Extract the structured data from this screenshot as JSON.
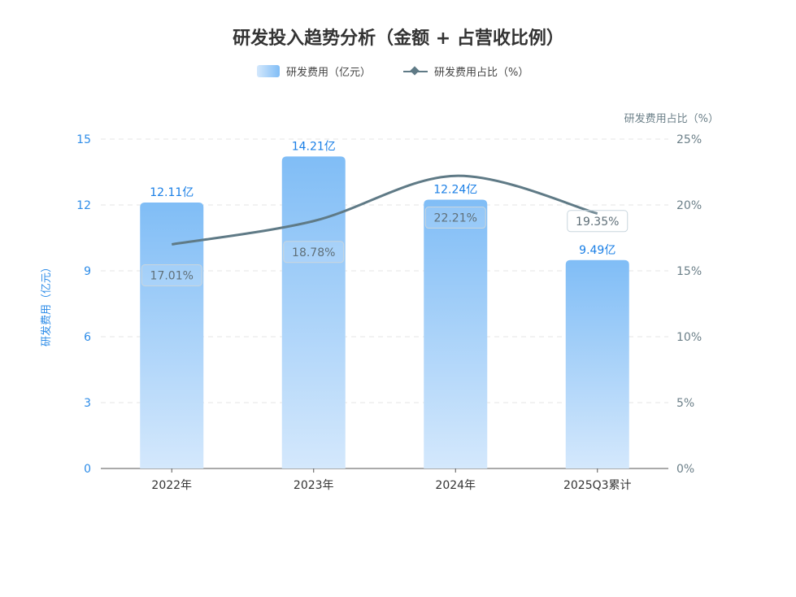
{
  "chart_data": {
    "type": "bar",
    "title": "研发投入趋势分析（金额 + 占营收比例）",
    "categories": [
      "2022年",
      "2023年",
      "2024年",
      "2025Q3累计"
    ],
    "series": [
      {
        "name": "研发费用（亿元）",
        "type": "bar",
        "axis": "left",
        "values": [
          12.11,
          14.21,
          12.24,
          9.49
        ],
        "labels": [
          "12.11亿",
          "14.21亿",
          "12.24亿",
          "9.49亿"
        ],
        "color": "#7fbdf5"
      },
      {
        "name": "研发费用占比（%）",
        "type": "line",
        "axis": "right",
        "values": [
          17.01,
          18.78,
          22.21,
          19.35
        ],
        "labels": [
          "17.01%",
          "18.78%",
          "22.21%",
          "19.35%"
        ],
        "color": "#5f7a86"
      }
    ],
    "ylabel": "研发费用（亿元）",
    "ylim": [
      0,
      15
    ],
    "yticks": [
      "0",
      "3",
      "6",
      "9",
      "12",
      "15"
    ],
    "y2label": "研发费用占比（%）",
    "y2lim": [
      0,
      25
    ],
    "y2ticks": [
      "0%",
      "5%",
      "10%",
      "15%",
      "20%",
      "25%"
    ],
    "grid": true,
    "legend": "top-center"
  }
}
